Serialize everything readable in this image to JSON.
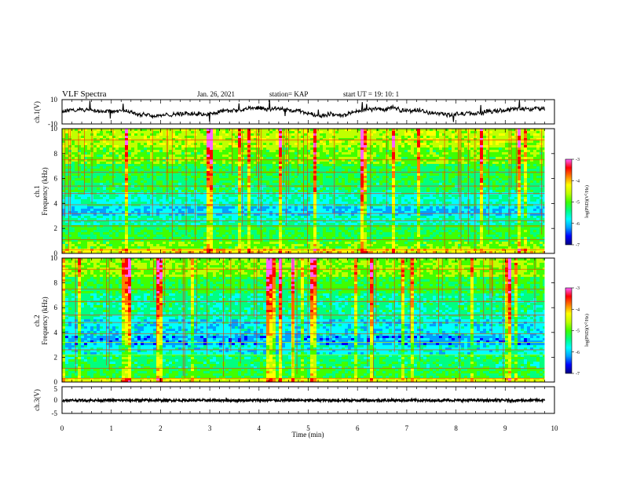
{
  "header": {
    "title": "VLF Spectra",
    "date": "Jan. 26, 2021",
    "station": "station= KAP",
    "start": "start UT = 19: 10: 1"
  },
  "chart_data": [
    {
      "type": "line",
      "name": "ch1-waveform",
      "ylabel": "ch.1(V)",
      "ylim": [
        -10,
        10
      ],
      "yticks": [
        "10",
        "-10"
      ],
      "xlim": [
        0,
        10
      ],
      "data_end_min": 9.8
    },
    {
      "type": "heatmap",
      "name": "ch1-spectrogram",
      "ylabel_top": "ch.1",
      "ylabel": "Frequency (kHz)",
      "ylim": [
        0,
        10
      ],
      "yticks": [
        "0",
        "2",
        "4",
        "6",
        "8",
        "10"
      ],
      "xlim": [
        0,
        10
      ],
      "data_end_min": 9.8,
      "colorbar": {
        "label": "log(PSD)(V²/Hz)",
        "range": [
          -7,
          -3
        ],
        "ticks": [
          "-3",
          "-4",
          "-5",
          "-6",
          "-7"
        ]
      },
      "colorbar_label_parts": {
        "pre": "log(PSD)(V",
        "sup": "2",
        "post": "/Hz)"
      }
    },
    {
      "type": "heatmap",
      "name": "ch2-spectrogram",
      "ylabel_top": "ch.2",
      "ylabel": "Frequency (kHz)",
      "ylim": [
        0,
        10
      ],
      "yticks": [
        "0",
        "2",
        "4",
        "6",
        "8",
        "10"
      ],
      "xlim": [
        0,
        10
      ],
      "data_end_min": 9.8,
      "colorbar": {
        "label": "log(PSD)(V²/Hz)",
        "range": [
          -7,
          -3
        ],
        "ticks": [
          "-3",
          "-4",
          "-5",
          "-6",
          "-7"
        ]
      },
      "colorbar_label_parts": {
        "pre": "log(PSD)(V",
        "sup": "2",
        "post": "/Hz)"
      }
    },
    {
      "type": "line",
      "name": "ch3-waveform",
      "ylabel": "ch.3(V)",
      "ylim": [
        -5,
        5
      ],
      "yticks": [
        "5",
        "0",
        "-5"
      ],
      "xlim": [
        0,
        10
      ],
      "data_end_min": 9.8
    }
  ],
  "xaxis": {
    "label": "Time (min)",
    "ticks": [
      "0",
      "1",
      "2",
      "3",
      "4",
      "5",
      "6",
      "7",
      "8",
      "9",
      "10"
    ]
  },
  "colors": {
    "colormap": [
      "#000080",
      "#0000ff",
      "#00a0ff",
      "#00ffff",
      "#00ff80",
      "#40ff00",
      "#c0ff00",
      "#ffff00",
      "#ff8000",
      "#ff0000",
      "#ff60ff"
    ]
  }
}
